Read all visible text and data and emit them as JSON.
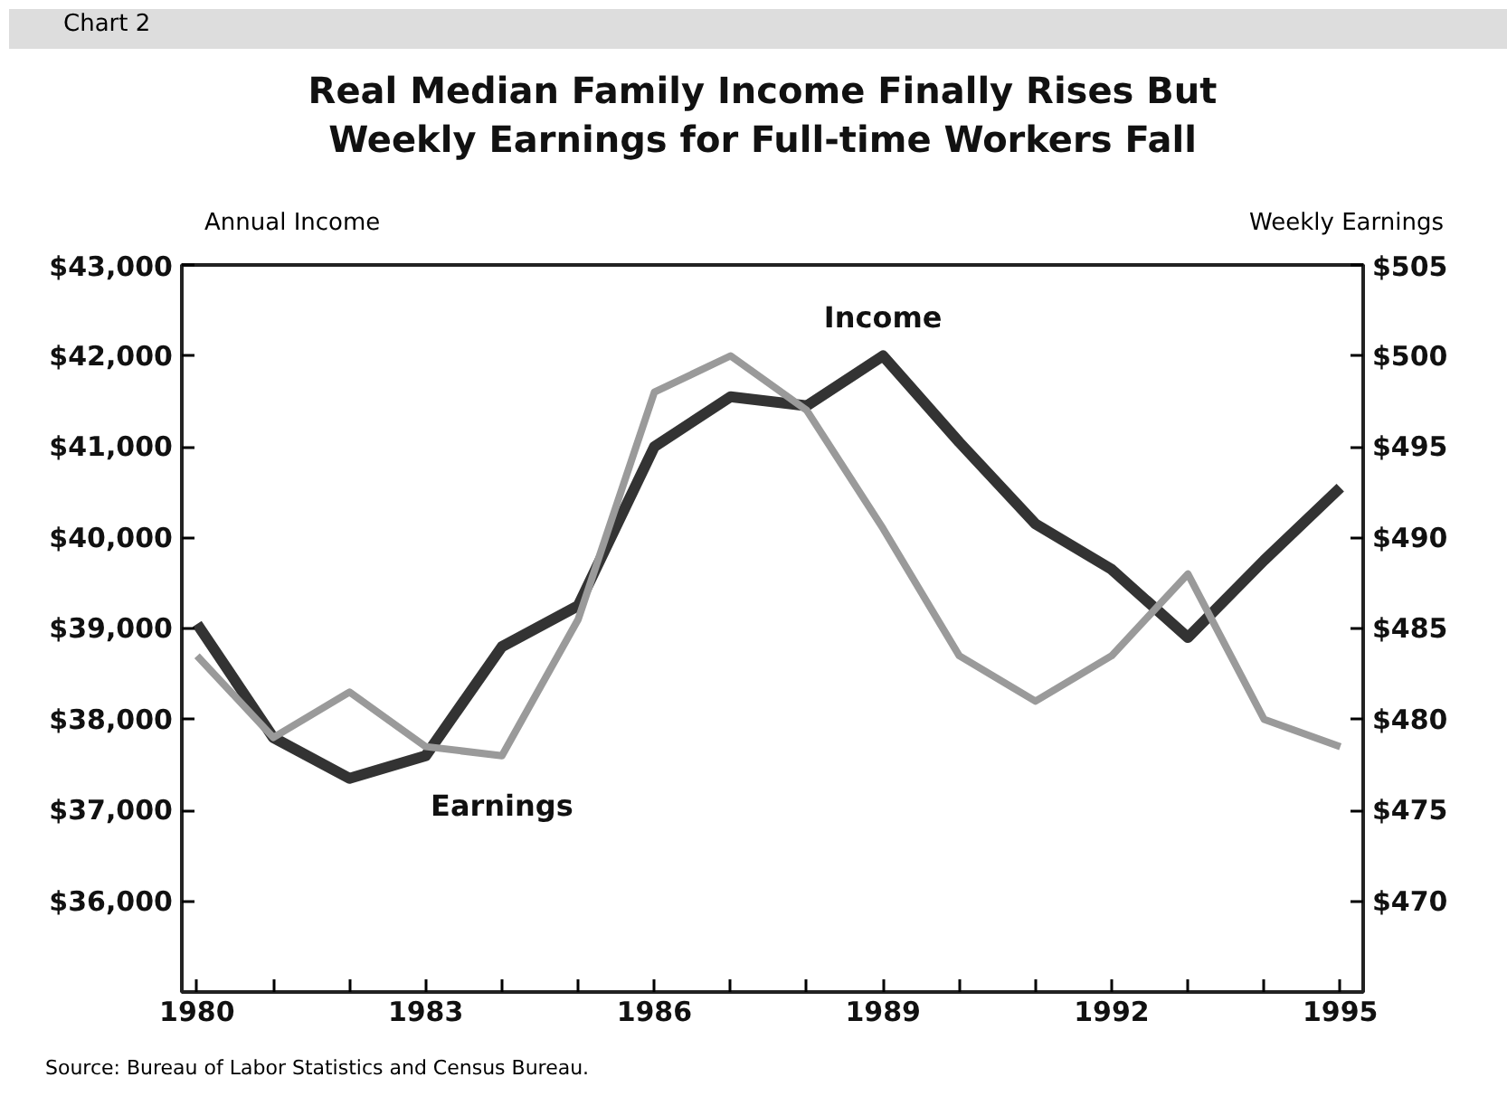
{
  "chart_data": {
    "type": "line",
    "title": "Real Median Family Income Finally Rises But\nWeekly Earnings for Full-time Workers Fall",
    "ylabel": "Annual Income",
    "y2label": "Weekly Earnings",
    "annotations": [
      "Chart 2",
      "Source: Bureau of Labor Statistics and Census Bureau."
    ],
    "x": [
      1980,
      1981,
      1982,
      1983,
      1984,
      1985,
      1986,
      1987,
      1988,
      1989,
      1990,
      1991,
      1992,
      1993,
      1994,
      1995
    ],
    "series": [
      {
        "name": "Income",
        "color": "#333333",
        "values": [
          39050,
          37800,
          37350,
          37600,
          38800,
          39250,
          41000,
          41550,
          41450,
          42000,
          41050,
          40150,
          39650,
          38900,
          39750,
          40550
        ]
      },
      {
        "name": "Earnings",
        "color": "#9a9a9a",
        "axis": "y2",
        "values": [
          483.5,
          479,
          481.5,
          478.5,
          478,
          485.5,
          498,
          500,
          497,
          490.5,
          483.5,
          481,
          483.5,
          488,
          480,
          478.5
        ]
      }
    ],
    "xlim": [
      1979.8,
      1995.3
    ],
    "xticks": [
      1980,
      {
        "value": 1981,
        "label": null
      },
      {
        "value": 1982,
        "label": null
      },
      1983,
      {
        "value": 1984,
        "label": null
      },
      {
        "value": 1985,
        "label": null
      },
      1986,
      {
        "value": 1987,
        "label": null
      },
      {
        "value": 1988,
        "label": null
      },
      1989,
      {
        "value": 1990,
        "label": null
      },
      {
        "value": 1991,
        "label": null
      },
      1992,
      {
        "value": 1993,
        "label": null
      },
      {
        "value": 1994,
        "label": null
      },
      1995
    ],
    "ylim": [
      35000,
      43000
    ],
    "yticks": [
      {
        "value": 36000,
        "label": "$36,000"
      },
      {
        "value": 37000,
        "label": "$37,000"
      },
      {
        "value": 38000,
        "label": "$38,000"
      },
      {
        "value": 39000,
        "label": "$39,000"
      },
      {
        "value": 40000,
        "label": "$40,000"
      },
      {
        "value": 41000,
        "label": "$41,000"
      },
      {
        "value": 42000,
        "label": "$42,000"
      },
      {
        "value": 43000,
        "label": "$43,000"
      }
    ],
    "y2lim": [
      465,
      505
    ],
    "y2ticks": [
      {
        "value": 470,
        "label": "$470"
      },
      {
        "value": 475,
        "label": "$475"
      },
      {
        "value": 480,
        "label": "$480"
      },
      {
        "value": 485,
        "label": "$485"
      },
      {
        "value": 490,
        "label": "$490"
      },
      {
        "value": 495,
        "label": "$495"
      },
      {
        "value": 500,
        "label": "$500"
      },
      {
        "value": 505,
        "label": "$505"
      }
    ],
    "grid": false,
    "legend": false,
    "marker": "none",
    "line_style": "solid"
  }
}
